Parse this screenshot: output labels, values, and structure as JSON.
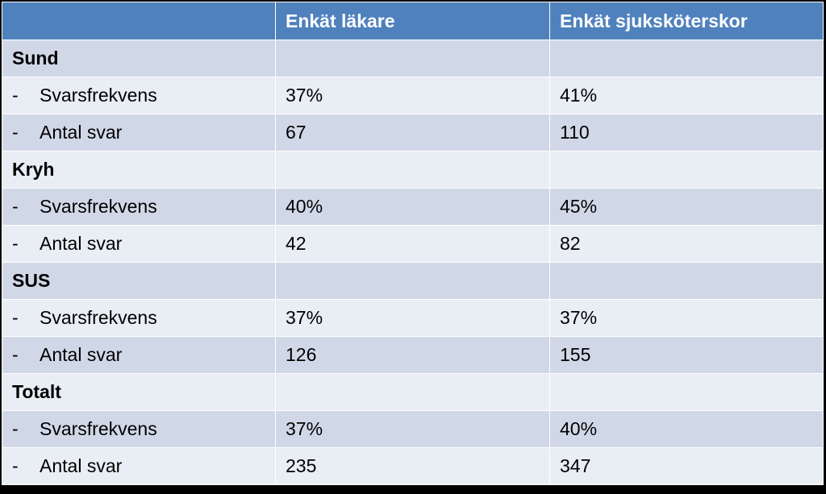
{
  "table": {
    "headers": [
      "",
      "Enkät läkare",
      "Enkät sjuksköterskor"
    ],
    "groups": [
      {
        "name": "Sund",
        "rows": [
          {
            "dash": "-",
            "label": "Svarsfrekvens",
            "lakare": "37%",
            "sjukskoterskor": "41%"
          },
          {
            "dash": "-",
            "label": "Antal svar",
            "lakare": "67",
            "sjukskoterskor": "110"
          }
        ]
      },
      {
        "name": "Kryh",
        "rows": [
          {
            "dash": "-",
            "label": "Svarsfrekvens",
            "lakare": "40%",
            "sjukskoterskor": "45%"
          },
          {
            "dash": "-",
            "label": "Antal svar",
            "lakare": "42",
            "sjukskoterskor": "82"
          }
        ]
      },
      {
        "name": "SUS",
        "rows": [
          {
            "dash": "-",
            "label": "Svarsfrekvens",
            "lakare": "37%",
            "sjukskoterskor": "37%"
          },
          {
            "dash": "-",
            "label": "Antal svar",
            "lakare": "126",
            "sjukskoterskor": "155"
          }
        ]
      },
      {
        "name": "Totalt",
        "rows": [
          {
            "dash": "-",
            "label": "Svarsfrekvens",
            "lakare": "37%",
            "sjukskoterskor": "40%"
          },
          {
            "dash": "-",
            "label": "Antal svar",
            "lakare": "235",
            "sjukskoterskor": "347"
          }
        ]
      }
    ]
  }
}
